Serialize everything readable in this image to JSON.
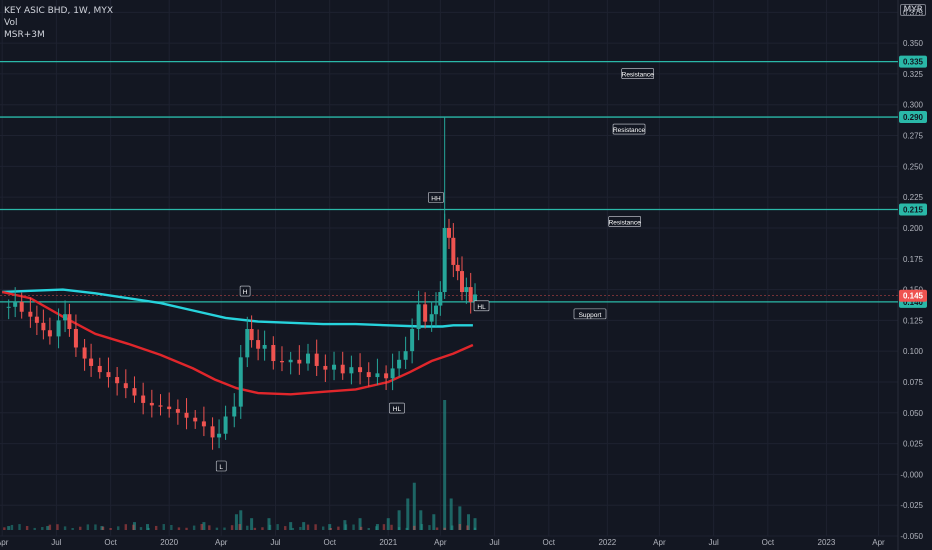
{
  "header": {
    "symbol_line": "KEY ASIC BHD, 1W, MYX",
    "vol_label": "Vol",
    "ma_label": "MSR+3M",
    "currency": "MYR"
  },
  "colors": {
    "background": "#131722",
    "grid": "#1e2230",
    "up": "#26a69a",
    "down": "#ef5350",
    "ma_fast": "#e0262b",
    "ma_slow": "#27d3dc",
    "level_line": "#2ab8a8",
    "axis_text": "#b2b5be"
  },
  "chart_data": {
    "type": "candlestick",
    "y_ticks": [
      "0.375",
      "0.350",
      "0.325",
      "0.300",
      "0.275",
      "0.250",
      "0.225",
      "0.200",
      "0.175",
      "0.150",
      "0.125",
      "0.100",
      "0.075",
      "0.050",
      "0.025",
      "-0.000",
      "-0.025",
      "-0.050"
    ],
    "ylim": [
      -0.05,
      0.385
    ],
    "x_ticks": [
      {
        "label": "Apr",
        "t": -0.03
      },
      {
        "label": "Jul",
        "t": 0.22
      },
      {
        "label": "Oct",
        "t": 0.47
      },
      {
        "label": "2020",
        "t": 0.74
      },
      {
        "label": "Apr",
        "t": 0.98
      },
      {
        "label": "Jul",
        "t": 1.23
      },
      {
        "label": "Oct",
        "t": 1.48
      },
      {
        "label": "2021",
        "t": 1.75
      },
      {
        "label": "Apr",
        "t": 1.99
      },
      {
        "label": "Jul",
        "t": 2.24
      },
      {
        "label": "Oct",
        "t": 2.49
      },
      {
        "label": "2022",
        "t": 2.76
      },
      {
        "label": "Apr",
        "t": 3.0
      },
      {
        "label": "Jul",
        "t": 3.25
      },
      {
        "label": "Oct",
        "t": 3.5
      },
      {
        "label": "2023",
        "t": 3.77
      },
      {
        "label": "Apr",
        "t": 4.01
      }
    ],
    "xlim": [
      -0.04,
      4.1
    ],
    "price_scale": [
      0.08,
      0.22
    ],
    "price_path": [
      [
        0.0,
        0.136
      ],
      [
        0.03,
        0.14
      ],
      [
        0.06,
        0.132
      ],
      [
        0.1,
        0.128
      ],
      [
        0.13,
        0.123
      ],
      [
        0.16,
        0.117
      ],
      [
        0.19,
        0.112
      ],
      [
        0.23,
        0.125
      ],
      [
        0.26,
        0.13
      ],
      [
        0.28,
        0.118
      ],
      [
        0.31,
        0.103
      ],
      [
        0.35,
        0.094
      ],
      [
        0.38,
        0.088
      ],
      [
        0.42,
        0.083
      ],
      [
        0.46,
        0.079
      ],
      [
        0.5,
        0.074
      ],
      [
        0.54,
        0.07
      ],
      [
        0.58,
        0.064
      ],
      [
        0.62,
        0.058
      ],
      [
        0.66,
        0.056
      ],
      [
        0.7,
        0.055
      ],
      [
        0.74,
        0.053
      ],
      [
        0.78,
        0.05
      ],
      [
        0.82,
        0.046
      ],
      [
        0.86,
        0.043
      ],
      [
        0.9,
        0.039
      ],
      [
        0.94,
        0.03
      ],
      [
        0.97,
        0.033
      ],
      [
        1.0,
        0.047
      ],
      [
        1.04,
        0.055
      ],
      [
        1.07,
        0.095
      ],
      [
        1.1,
        0.118
      ],
      [
        1.12,
        0.109
      ],
      [
        1.15,
        0.102
      ],
      [
        1.18,
        0.105
      ],
      [
        1.22,
        0.092
      ],
      [
        1.26,
        0.091
      ],
      [
        1.3,
        0.093
      ],
      [
        1.34,
        0.09
      ],
      [
        1.38,
        0.098
      ],
      [
        1.42,
        0.088
      ],
      [
        1.46,
        0.085
      ],
      [
        1.5,
        0.089
      ],
      [
        1.54,
        0.082
      ],
      [
        1.58,
        0.087
      ],
      [
        1.62,
        0.083
      ],
      [
        1.66,
        0.079
      ],
      [
        1.7,
        0.082
      ],
      [
        1.74,
        0.078
      ],
      [
        1.77,
        0.086
      ],
      [
        1.8,
        0.093
      ],
      [
        1.83,
        0.1
      ],
      [
        1.86,
        0.118
      ],
      [
        1.89,
        0.138
      ],
      [
        1.92,
        0.124
      ],
      [
        1.95,
        0.13
      ],
      [
        1.97,
        0.137
      ],
      [
        1.99,
        0.148
      ],
      [
        2.01,
        0.2
      ],
      [
        2.03,
        0.192
      ],
      [
        2.05,
        0.17
      ],
      [
        2.07,
        0.165
      ],
      [
        2.09,
        0.148
      ],
      [
        2.11,
        0.152
      ],
      [
        2.13,
        0.14
      ],
      [
        2.15,
        0.146
      ]
    ],
    "volume": [
      {
        "t": 0.0,
        "v": 1
      },
      {
        "t": 0.18,
        "v": 1
      },
      {
        "t": 0.43,
        "v": 1
      },
      {
        "t": 0.58,
        "v": 2
      },
      {
        "t": 0.64,
        "v": 1.5
      },
      {
        "t": 0.9,
        "v": 2
      },
      {
        "t": 1.05,
        "v": 4
      },
      {
        "t": 1.07,
        "v": 5
      },
      {
        "t": 1.12,
        "v": 3
      },
      {
        "t": 1.2,
        "v": 3
      },
      {
        "t": 1.3,
        "v": 2
      },
      {
        "t": 1.36,
        "v": 2
      },
      {
        "t": 1.48,
        "v": 1.5
      },
      {
        "t": 1.55,
        "v": 2.5
      },
      {
        "t": 1.62,
        "v": 3
      },
      {
        "t": 1.7,
        "v": 1.5
      },
      {
        "t": 1.75,
        "v": 3
      },
      {
        "t": 1.8,
        "v": 5
      },
      {
        "t": 1.84,
        "v": 8
      },
      {
        "t": 1.87,
        "v": 12
      },
      {
        "t": 1.9,
        "v": 5
      },
      {
        "t": 1.96,
        "v": 4
      },
      {
        "t": 2.01,
        "v": 33
      },
      {
        "t": 2.04,
        "v": 8
      },
      {
        "t": 2.08,
        "v": 6
      },
      {
        "t": 2.12,
        "v": 4
      },
      {
        "t": 2.15,
        "v": 3
      }
    ],
    "volume_max": 33,
    "ma_slow": [
      [
        -0.03,
        0.148
      ],
      [
        0.1,
        0.149
      ],
      [
        0.25,
        0.15
      ],
      [
        0.4,
        0.147
      ],
      [
        0.55,
        0.143
      ],
      [
        0.7,
        0.139
      ],
      [
        0.85,
        0.133
      ],
      [
        1.0,
        0.127
      ],
      [
        1.15,
        0.124
      ],
      [
        1.3,
        0.123
      ],
      [
        1.45,
        0.122
      ],
      [
        1.6,
        0.122
      ],
      [
        1.75,
        0.121
      ],
      [
        1.9,
        0.12
      ],
      [
        2.0,
        0.12
      ],
      [
        2.05,
        0.121
      ],
      [
        2.14,
        0.121
      ]
    ],
    "ma_fast": [
      [
        -0.03,
        0.148
      ],
      [
        0.1,
        0.143
      ],
      [
        0.25,
        0.128
      ],
      [
        0.4,
        0.114
      ],
      [
        0.55,
        0.106
      ],
      [
        0.7,
        0.097
      ],
      [
        0.85,
        0.086
      ],
      [
        0.95,
        0.077
      ],
      [
        1.05,
        0.07
      ],
      [
        1.15,
        0.066
      ],
      [
        1.3,
        0.065
      ],
      [
        1.45,
        0.067
      ],
      [
        1.6,
        0.069
      ],
      [
        1.75,
        0.075
      ],
      [
        1.85,
        0.083
      ],
      [
        1.95,
        0.092
      ],
      [
        2.05,
        0.098
      ],
      [
        2.14,
        0.105
      ]
    ],
    "levels": [
      {
        "value": 0.335,
        "price_label": "0.335",
        "text": "Resistance",
        "label_t": 2.9
      },
      {
        "value": 0.29,
        "price_label": "0.290",
        "text": "Resistance",
        "label_t": 2.86
      },
      {
        "value": 0.215,
        "price_label": "0.215",
        "text": "Resistance",
        "label_t": 2.84
      },
      {
        "value": 0.14,
        "price_label": "0.140",
        "text": "Support",
        "label_t": 2.68
      }
    ],
    "last_price": {
      "value": 0.145,
      "label": "0.145"
    },
    "marks": [
      {
        "text": "H",
        "t": 1.09,
        "value": 0.148
      },
      {
        "text": "HH",
        "t": 1.97,
        "value": 0.224
      },
      {
        "text": "HL",
        "t": 2.18,
        "value": 0.136
      },
      {
        "text": "HL",
        "t": 1.79,
        "value": 0.053
      },
      {
        "text": "L",
        "t": 0.98,
        "value": 0.006
      }
    ]
  }
}
